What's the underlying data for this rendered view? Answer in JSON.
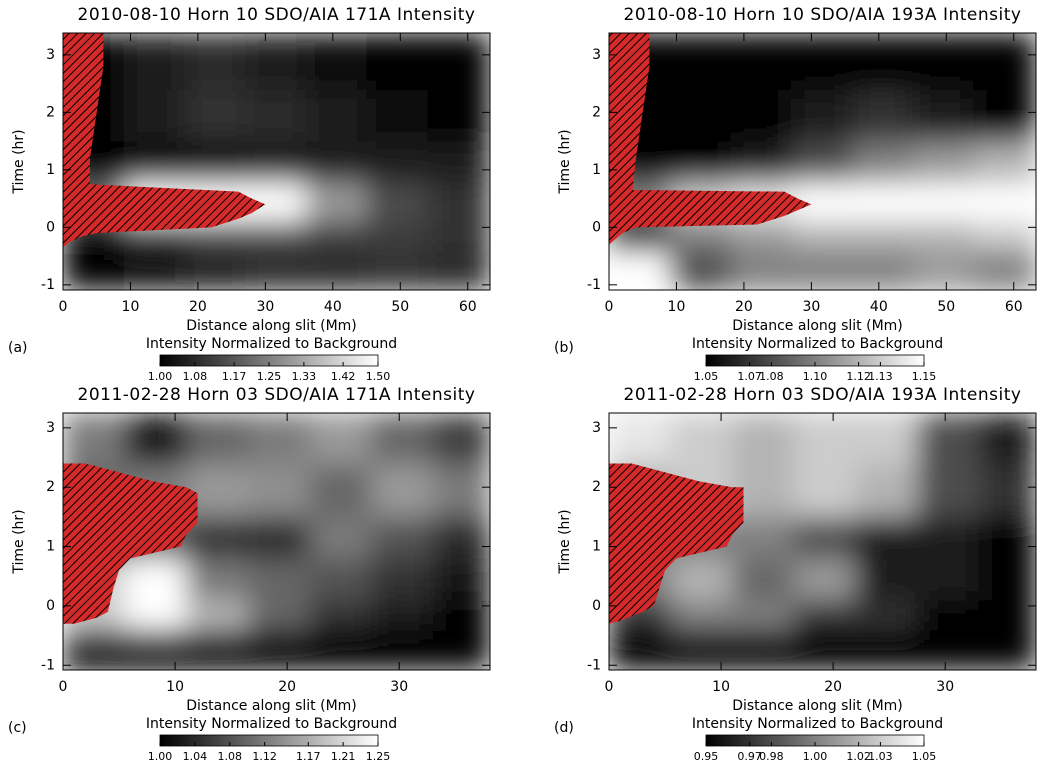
{
  "chart_data": [
    {
      "type": "heatmap",
      "title": "2010-08-10 Horn 10 SDO/AIA 171A Intensity",
      "xlabel": "Distance along slit (Mm)",
      "ylabel": "Time (hr)",
      "panel_label": "(a)",
      "colorbar_label": "Intensity Normalized to Background",
      "xlim": [
        0,
        63.3
      ],
      "ylim": [
        -1.09,
        3.38
      ],
      "xticks": [
        0,
        10,
        20,
        30,
        40,
        50,
        60
      ],
      "yticks": [
        -1,
        0,
        1,
        2,
        3
      ],
      "xbins": [
        0,
        9,
        18,
        27,
        36,
        45,
        54,
        63.3
      ],
      "ybins": [
        -1.09,
        -0.4,
        0.1,
        0.8,
        1.5,
        2.4,
        3.38
      ],
      "z": [
        [
          1.0,
          1.02,
          1.06,
          1.08,
          1.08,
          1.1,
          1.08
        ],
        [
          1.02,
          1.1,
          1.15,
          1.15,
          1.12,
          1.12,
          1.1
        ],
        [
          1.2,
          1.5,
          1.5,
          1.5,
          1.3,
          1.15,
          1.1
        ],
        [
          1.0,
          1.02,
          1.03,
          1.05,
          1.05,
          1.06,
          1.05
        ],
        [
          1.0,
          1.06,
          1.1,
          1.08,
          1.05,
          1.03,
          1.0
        ],
        [
          1.0,
          1.06,
          1.08,
          1.06,
          1.03,
          1.0,
          1.0
        ]
      ],
      "zlim": [
        1,
        1.5
      ],
      "cticks": [
        {
          "value": 1,
          "label": "1.00"
        },
        1.08,
        1.17,
        1.25,
        1.33,
        1.42,
        {
          "value": 1.5,
          "label": "1.50"
        }
      ],
      "hatch_color": "#d42a2a",
      "hatched_region": {
        "x": [
          0,
          6,
          6,
          5,
          4,
          4,
          26,
          28,
          30,
          28,
          26,
          22,
          5,
          3,
          1,
          0
        ],
        "y": [
          3.38,
          3.38,
          2.8,
          2,
          1.2,
          0.75,
          0.62,
          0.5,
          0.4,
          0.25,
          0.15,
          0.0,
          -0.1,
          -0.15,
          -0.25,
          -0.35
        ]
      }
    },
    {
      "type": "heatmap",
      "title": "2010-08-10 Horn 10 SDO/AIA 193A Intensity",
      "xlabel": "Distance along slit (Mm)",
      "ylabel": "Time (hr)",
      "panel_label": "(b)",
      "colorbar_label": "Intensity Normalized to Background",
      "xlim": [
        0,
        63.3
      ],
      "ylim": [
        -1.09,
        3.38
      ],
      "xticks": [
        0,
        10,
        20,
        30,
        40,
        50,
        60
      ],
      "yticks": [
        -1,
        0,
        1,
        2,
        3
      ],
      "xbins": [
        0,
        9,
        18,
        27,
        36,
        45,
        54,
        63.3
      ],
      "ybins": [
        -1.09,
        -0.4,
        0.1,
        0.8,
        1.5,
        2.4,
        3.38
      ],
      "z": [
        [
          1.15,
          1.08,
          1.1,
          1.1,
          1.1,
          1.11,
          1.1
        ],
        [
          1.05,
          1.1,
          1.11,
          1.12,
          1.12,
          1.12,
          1.13
        ],
        [
          1.1,
          1.13,
          1.14,
          1.15,
          1.15,
          1.15,
          1.15
        ],
        [
          1.05,
          1.05,
          1.06,
          1.08,
          1.1,
          1.11,
          1.12
        ],
        [
          1.05,
          1.05,
          1.05,
          1.06,
          1.07,
          1.06,
          1.05
        ],
        [
          1.05,
          1.05,
          1.05,
          1.05,
          1.05,
          1.05,
          1.05
        ]
      ],
      "zlim": [
        1.05,
        1.15
      ],
      "cticks": [
        1.05,
        1.07,
        1.08,
        {
          "value": 1.1,
          "label": "1.10"
        },
        1.12,
        1.13,
        1.15
      ],
      "hatch_color": "#d42a2a",
      "hatched_region": {
        "x": [
          0,
          6,
          6,
          5,
          4,
          3.5,
          26,
          28,
          30,
          28,
          26,
          22,
          4,
          2,
          1,
          0
        ],
        "y": [
          3.38,
          3.38,
          2.8,
          2,
          1.2,
          0.65,
          0.62,
          0.5,
          0.4,
          0.3,
          0.2,
          0.05,
          0.0,
          -0.1,
          -0.2,
          -0.3
        ]
      }
    },
    {
      "type": "heatmap",
      "title": "2011-02-28 Horn 03 SDO/AIA 171A Intensity",
      "xlabel": "Distance along slit (Mm)",
      "ylabel": "Time (hr)",
      "panel_label": "(c)",
      "colorbar_label": "Intensity Normalized to Background",
      "xlim": [
        0,
        38.1
      ],
      "ylim": [
        -1.08,
        3.25
      ],
      "xticks": [
        0,
        10,
        20,
        30
      ],
      "yticks": [
        -1,
        0,
        1,
        2,
        3
      ],
      "xbins": [
        0,
        5.5,
        11,
        16.5,
        22,
        27.5,
        33,
        38.1
      ],
      "ybins": [
        -1.08,
        -0.4,
        0.1,
        0.8,
        1.5,
        2.4,
        3.25
      ],
      "z": [
        [
          1.0,
          1.0,
          1.0,
          1.0,
          1.0,
          1.0,
          1.0
        ],
        [
          1.2,
          1.25,
          1.18,
          1.1,
          1.05,
          1.03,
          1.0
        ],
        [
          1.2,
          1.25,
          1.12,
          1.1,
          1.08,
          1.05,
          1.02
        ],
        [
          1.1,
          1.1,
          1.05,
          1.04,
          1.12,
          1.08,
          1.04
        ],
        [
          1.1,
          1.12,
          1.15,
          1.14,
          1.1,
          1.15,
          1.12
        ],
        [
          1.12,
          1.02,
          1.1,
          1.12,
          1.15,
          1.1,
          1.06
        ]
      ],
      "zlim": [
        1,
        1.25
      ],
      "cticks": [
        {
          "value": 1,
          "label": "1.00"
        },
        1.04,
        1.08,
        1.12,
        1.17,
        1.21,
        1.25
      ],
      "hatch_color": "#d42a2a",
      "hatched_region": {
        "x": [
          0,
          2,
          4,
          8,
          11,
          12,
          12,
          11,
          10.5,
          6,
          5,
          4.5,
          4,
          3,
          1,
          0
        ],
        "y": [
          2.4,
          2.4,
          2.3,
          2.1,
          2.0,
          1.9,
          1.4,
          1.2,
          1.0,
          0.8,
          0.6,
          0.3,
          -0.1,
          -0.2,
          -0.3,
          -0.3
        ]
      }
    },
    {
      "type": "heatmap",
      "title": "2011-02-28 Horn 03 SDO/AIA 193A Intensity",
      "xlabel": "Distance along slit (Mm)",
      "ylabel": "Time (hr)",
      "panel_label": "(d)",
      "colorbar_label": "Intensity Normalized to Background",
      "xlim": [
        0,
        38.1
      ],
      "ylim": [
        -1.08,
        3.25
      ],
      "xticks": [
        0,
        10,
        20,
        30
      ],
      "yticks": [
        -1,
        0,
        1,
        2,
        3
      ],
      "xbins": [
        0,
        5.5,
        11,
        16.5,
        22,
        27.5,
        33,
        38.1
      ],
      "ybins": [
        -1.08,
        -0.4,
        0.1,
        0.8,
        1.5,
        2.4,
        3.25
      ],
      "z": [
        [
          0.95,
          0.95,
          0.95,
          0.95,
          0.95,
          0.95,
          0.95
        ],
        [
          0.97,
          1.0,
          1.0,
          0.97,
          0.97,
          0.95,
          0.95
        ],
        [
          1.0,
          1.02,
          0.99,
          1.01,
          0.96,
          0.96,
          0.95
        ],
        [
          1.0,
          1.0,
          1.0,
          0.98,
          0.96,
          0.96,
          0.95
        ],
        [
          1.02,
          1.03,
          1.02,
          1.03,
          1.02,
          0.98,
          0.97
        ],
        [
          1.04,
          1.03,
          1.02,
          1.03,
          1.03,
          0.98,
          0.96
        ]
      ],
      "zlim": [
        0.95,
        1.05
      ],
      "cticks": [
        0.95,
        0.97,
        0.98,
        {
          "value": 1,
          "label": "1.00"
        },
        1.02,
        1.03,
        1.05
      ],
      "hatch_color": "#d42a2a",
      "hatched_region": {
        "x": [
          0,
          2,
          4,
          8,
          11,
          12,
          12,
          11,
          10.5,
          6,
          5,
          4.5,
          4,
          3,
          1,
          0
        ],
        "y": [
          2.4,
          2.4,
          2.3,
          2.1,
          2.0,
          2.0,
          1.4,
          1.2,
          1.0,
          0.8,
          0.6,
          0.3,
          0.0,
          -0.1,
          -0.25,
          -0.3
        ]
      }
    }
  ]
}
